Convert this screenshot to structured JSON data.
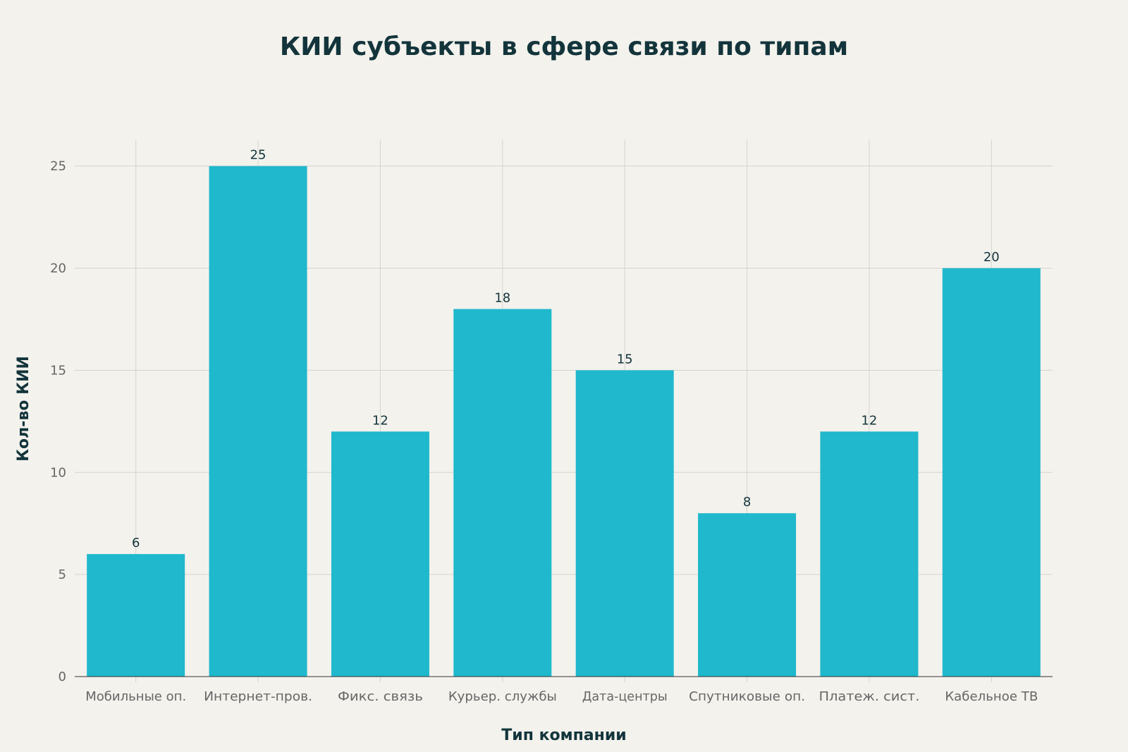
{
  "chart_data": {
    "type": "bar",
    "title": "КИИ субъекты в сфере связи по типам",
    "xlabel": "Тип компании",
    "ylabel": "Кол-во КИИ",
    "categories": [
      "Мобильные оп.",
      "Интернет-пров.",
      "Фикс. связь",
      "Курьер. службы",
      "Дата-центры",
      "Спутниковые оп.",
      "Платеж. сист.",
      "Кабельное ТВ"
    ],
    "values": [
      6,
      25,
      12,
      18,
      15,
      8,
      12,
      20
    ],
    "ylim": [
      0,
      26.3
    ],
    "yticks": [
      0,
      5,
      10,
      15,
      20,
      25
    ],
    "grid": true,
    "data_labels": true,
    "colors": {
      "bar": "#1fb8cc",
      "background": "#f3f2ed",
      "title": "#13343b",
      "grid": "#d4d4cf"
    }
  }
}
